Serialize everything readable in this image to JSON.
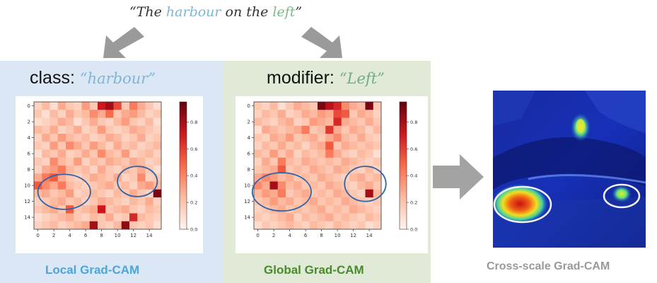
{
  "caption": {
    "open_quote": "“",
    "the": "The ",
    "class_word": "harbour",
    "mid": " on the ",
    "modifier_word": "left",
    "close_quote": "”"
  },
  "local_panel": {
    "title_prefix": "class: ",
    "title_value": "“harbour”",
    "footer": "Local Grad-CAM"
  },
  "global_panel": {
    "title_prefix": "modifier: ",
    "title_value": "“Left”",
    "footer": "Global Grad-CAM"
  },
  "output": {
    "label": "Cross-scale Grad-CAM"
  },
  "chart_data": [
    {
      "type": "heatmap",
      "y_ticks": [
        "0",
        "2",
        "4",
        "6",
        "8",
        "10",
        "12",
        "14"
      ],
      "x_ticks": [
        "0",
        "2",
        "4",
        "6",
        "8",
        "10",
        "12",
        "14"
      ],
      "colorbar_ticks": [
        "0.8",
        "0.6",
        "0.4",
        "0.2",
        "0.0"
      ],
      "colormap": "Reds",
      "values": [
        [
          0.15,
          0.25,
          0.1,
          0.3,
          0.2,
          0.15,
          0.35,
          0.2,
          0.75,
          0.85,
          0.6,
          0.2,
          0.45,
          0.3,
          0.2,
          0.1
        ],
        [
          0.2,
          0.1,
          0.25,
          0.15,
          0.3,
          0.2,
          0.25,
          0.4,
          0.3,
          0.5,
          0.2,
          0.3,
          0.35,
          0.25,
          0.15,
          0.2
        ],
        [
          0.1,
          0.15,
          0.2,
          0.3,
          0.25,
          0.1,
          0.2,
          0.3,
          0.2,
          0.15,
          0.25,
          0.35,
          0.2,
          0.15,
          0.25,
          0.1
        ],
        [
          0.25,
          0.2,
          0.3,
          0.15,
          0.2,
          0.3,
          0.15,
          0.2,
          0.35,
          0.2,
          0.15,
          0.2,
          0.3,
          0.25,
          0.2,
          0.15
        ],
        [
          0.15,
          0.3,
          0.2,
          0.35,
          0.25,
          0.2,
          0.25,
          0.15,
          0.2,
          0.3,
          0.25,
          0.15,
          0.2,
          0.3,
          0.15,
          0.2
        ],
        [
          0.2,
          0.15,
          0.35,
          0.2,
          0.4,
          0.3,
          0.2,
          0.35,
          0.25,
          0.15,
          0.3,
          0.2,
          0.25,
          0.15,
          0.2,
          0.25
        ],
        [
          0.1,
          0.25,
          0.2,
          0.3,
          0.15,
          0.2,
          0.3,
          0.2,
          0.4,
          0.25,
          0.2,
          0.35,
          0.15,
          0.2,
          0.25,
          0.15
        ],
        [
          0.2,
          0.15,
          0.4,
          0.25,
          0.2,
          0.35,
          0.15,
          0.25,
          0.2,
          0.3,
          0.25,
          0.2,
          0.3,
          0.25,
          0.15,
          0.2
        ],
        [
          0.15,
          0.3,
          0.35,
          0.45,
          0.25,
          0.2,
          0.25,
          0.15,
          0.3,
          0.2,
          0.15,
          0.25,
          0.2,
          0.3,
          0.2,
          0.1
        ],
        [
          0.3,
          0.45,
          0.55,
          0.3,
          0.2,
          0.15,
          0.2,
          0.3,
          0.25,
          0.2,
          0.3,
          0.15,
          0.2,
          0.4,
          0.15,
          0.2
        ],
        [
          0.55,
          0.4,
          0.3,
          0.45,
          0.25,
          0.2,
          0.15,
          0.2,
          0.25,
          0.3,
          0.2,
          0.25,
          0.15,
          0.3,
          0.35,
          0.25
        ],
        [
          0.25,
          0.3,
          0.2,
          0.25,
          0.35,
          0.15,
          0.2,
          0.25,
          0.2,
          0.15,
          0.25,
          0.2,
          0.3,
          0.2,
          0.15,
          0.95
        ],
        [
          0.15,
          0.2,
          0.25,
          0.3,
          0.2,
          0.25,
          0.15,
          0.2,
          0.3,
          0.25,
          0.2,
          0.15,
          0.25,
          0.2,
          0.3,
          0.15
        ],
        [
          0.2,
          0.25,
          0.3,
          0.2,
          0.55,
          0.2,
          0.25,
          0.3,
          0.75,
          0.2,
          0.25,
          0.3,
          0.2,
          0.15,
          0.25,
          0.2
        ],
        [
          0.1,
          0.15,
          0.2,
          0.25,
          0.3,
          0.2,
          0.15,
          0.25,
          0.2,
          0.3,
          0.15,
          0.2,
          0.7,
          0.25,
          0.2,
          0.15
        ],
        [
          0.15,
          0.2,
          0.25,
          0.15,
          0.2,
          0.25,
          0.3,
          0.85,
          0.2,
          0.15,
          0.25,
          0.9,
          0.2,
          0.15,
          0.2,
          0.1
        ]
      ]
    },
    {
      "type": "heatmap",
      "y_ticks": [
        "0",
        "2",
        "4",
        "6",
        "8",
        "10",
        "12",
        "14"
      ],
      "x_ticks": [
        "0",
        "2",
        "4",
        "6",
        "8",
        "10",
        "12",
        "14"
      ],
      "colorbar_ticks": [
        "0.8",
        "0.6",
        "0.4",
        "0.2",
        "0.0"
      ],
      "colormap": "Reds",
      "values": [
        [
          0.2,
          0.15,
          0.25,
          0.1,
          0.2,
          0.3,
          0.25,
          0.2,
          0.95,
          0.8,
          0.7,
          0.4,
          0.3,
          0.25,
          0.95,
          0.2
        ],
        [
          0.15,
          0.25,
          0.2,
          0.3,
          0.15,
          0.2,
          0.3,
          0.25,
          0.35,
          0.3,
          0.6,
          0.55,
          0.2,
          0.3,
          0.25,
          0.15
        ],
        [
          0.25,
          0.2,
          0.15,
          0.25,
          0.3,
          0.15,
          0.2,
          0.35,
          0.3,
          0.25,
          0.7,
          0.3,
          0.25,
          0.2,
          0.3,
          0.2
        ],
        [
          0.1,
          0.3,
          0.25,
          0.2,
          0.25,
          0.3,
          0.45,
          0.2,
          0.25,
          0.65,
          0.3,
          0.2,
          0.3,
          0.25,
          0.15,
          0.25
        ],
        [
          0.2,
          0.15,
          0.3,
          0.25,
          0.35,
          0.2,
          0.25,
          0.3,
          0.2,
          0.3,
          0.4,
          0.25,
          0.2,
          0.3,
          0.2,
          0.15
        ],
        [
          0.15,
          0.25,
          0.2,
          0.3,
          0.2,
          0.25,
          0.15,
          0.25,
          0.3,
          0.55,
          0.2,
          0.3,
          0.25,
          0.2,
          0.25,
          0.2
        ],
        [
          0.25,
          0.2,
          0.35,
          0.2,
          0.3,
          0.15,
          0.25,
          0.2,
          0.25,
          0.45,
          0.3,
          0.2,
          0.15,
          0.25,
          0.2,
          0.1
        ],
        [
          0.15,
          0.3,
          0.2,
          0.45,
          0.25,
          0.2,
          0.3,
          0.25,
          0.2,
          0.25,
          0.2,
          0.3,
          0.25,
          0.2,
          0.15,
          0.2
        ],
        [
          0.2,
          0.25,
          0.3,
          0.55,
          0.2,
          0.25,
          0.2,
          0.3,
          0.25,
          0.2,
          0.3,
          0.25,
          0.2,
          0.15,
          0.25,
          0.15
        ],
        [
          0.3,
          0.4,
          0.35,
          0.25,
          0.3,
          0.2,
          0.25,
          0.2,
          0.3,
          0.25,
          0.2,
          0.15,
          0.25,
          0.3,
          0.2,
          0.25
        ],
        [
          0.4,
          0.3,
          0.85,
          0.4,
          0.25,
          0.3,
          0.2,
          0.25,
          0.2,
          0.3,
          0.25,
          0.2,
          0.15,
          0.25,
          0.3,
          0.2
        ],
        [
          0.25,
          0.35,
          0.3,
          0.45,
          0.2,
          0.25,
          0.3,
          0.2,
          0.25,
          0.2,
          0.3,
          0.25,
          0.2,
          0.15,
          0.85,
          0.25
        ],
        [
          0.2,
          0.25,
          0.35,
          0.25,
          0.3,
          0.2,
          0.25,
          0.3,
          0.2,
          0.25,
          0.2,
          0.3,
          0.25,
          0.2,
          0.15,
          0.2
        ],
        [
          0.15,
          0.2,
          0.25,
          0.3,
          0.2,
          0.25,
          0.2,
          0.25,
          0.3,
          0.2,
          0.25,
          0.2,
          0.3,
          0.25,
          0.2,
          0.15
        ],
        [
          0.2,
          0.15,
          0.2,
          0.25,
          0.3,
          0.15,
          0.25,
          0.2,
          0.25,
          0.3,
          0.2,
          0.25,
          0.2,
          0.15,
          0.25,
          0.2
        ],
        [
          0.1,
          0.2,
          0.15,
          0.2,
          0.25,
          0.2,
          0.15,
          0.25,
          0.2,
          0.15,
          0.25,
          0.2,
          0.15,
          0.2,
          0.1,
          0.15
        ]
      ]
    }
  ]
}
